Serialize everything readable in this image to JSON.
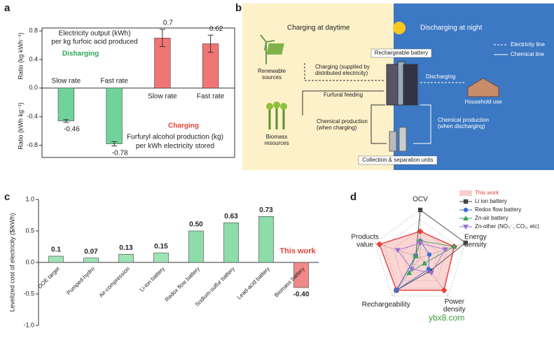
{
  "panel_labels": [
    "a",
    "b",
    "c",
    "d"
  ],
  "watermark": "ybx8.com",
  "chart_data": [
    {
      "type": "bar",
      "categories": [
        "Slow rate",
        "Fast rate",
        "Slow rate",
        "Fast rate"
      ],
      "values": [
        -0.46,
        -0.78,
        0.7,
        0.62
      ],
      "errors": [
        0.02,
        0.03,
        0.12,
        0.12
      ],
      "colors": [
        "#6fd39b",
        "#6fd39b",
        "#f07575",
        "#f07575"
      ],
      "ylim": [
        -0.97,
        0.84
      ],
      "yticks": [
        -0.8,
        -0.4,
        {
          "value": 0,
          "label": "0.0"
        },
        0.4,
        0.8
      ],
      "ylabel": [
        "Ratio (kg kWh⁻¹)",
        "Ratio (kWh kg⁻¹)"
      ],
      "annotations": [
        "Electricity output (kWh)",
        "per kg furfoic acid produced",
        "Disharging",
        "Charging",
        "Furfuryl alcohol production (kg)",
        "per kWh electricity stored"
      ]
    },
    {
      "type": "bar",
      "categories": [
        "DOE target",
        "Pumped-hydro",
        "Air-compression",
        "Li-ion battery",
        "Redox flow battery",
        "Sodium-sulfur battery",
        "Lead-acid battery",
        "Biomass battery"
      ],
      "values": [
        0.1,
        0.07,
        0.13,
        0.15,
        0.5,
        0.63,
        0.73,
        -0.4
      ],
      "value_labels": [
        "0.1",
        "0.07",
        "0.13",
        "0.15",
        "0.50",
        "0.63",
        "0.73",
        "-0.40"
      ],
      "colors": [
        "#9fe3b6",
        "#9fe3b6",
        "#9fe3b6",
        "#9fe3b6",
        "#8edcaa",
        "#8edcaa",
        "#8edcaa",
        "#f08a8a"
      ],
      "ylim": [
        -1,
        1
      ],
      "yticks": [
        {
          "value": -1,
          "label": "-1.0"
        },
        -0.5,
        {
          "value": 0,
          "label": "0.0"
        },
        0.5,
        {
          "value": 1,
          "label": "1.0"
        }
      ],
      "ylabel": "Levelized cost of electricity ($/kWh)",
      "annotations": [
        "This work"
      ]
    },
    {
      "type": "radar",
      "categories": [
        "OCV",
        "Energy density",
        "Power density",
        "Rechargeability",
        "Products value"
      ],
      "rlim": [
        0,
        1
      ],
      "rticks": [
        0.2,
        0.4,
        0.6,
        0.8,
        1
      ],
      "series": [
        {
          "name": "This work",
          "color": "#e8413c",
          "marker": "diamond",
          "fill": true,
          "values": [
            0.55,
            0.75,
            0.85,
            0.85,
            0.9
          ]
        },
        {
          "name": "Li ion battery",
          "color": "#444444",
          "marker": "square",
          "values": [
            1.0,
            1.0,
            0.35,
            0.85,
            0.1
          ]
        },
        {
          "name": "Redox flow battery",
          "color": "#3b6fd6",
          "marker": "circle",
          "values": [
            0.35,
            0.2,
            0.3,
            0.85,
            0.1
          ]
        },
        {
          "name": "Zn-air battery",
          "color": "#3aa35a",
          "marker": "triangle",
          "values": [
            0.35,
            0.75,
            0.15,
            0.4,
            0.1
          ]
        },
        {
          "name": "Zn-other (NO₃⁻, CO₂, etc)",
          "color": "#9a6fd6",
          "marker": "triangle-down",
          "values": [
            0.3,
            0.55,
            0.4,
            0.3,
            0.5
          ]
        }
      ]
    }
  ],
  "diagram": {
    "day": "Charging at daytime",
    "night": "Discharging at night",
    "electricity_line": "Electricity line",
    "chemical_line": "Chemical line",
    "renewable": [
      "Renewable",
      "sources"
    ],
    "battery": "Rechargeable battery",
    "charging": [
      "Charging (supplied by",
      "distributed electricity)"
    ],
    "discharging": "Discharging",
    "household": "Household use",
    "furfural": "Furfural feeding",
    "biomass": [
      "Biomass",
      "resources"
    ],
    "chem_charge": [
      "Chemical production",
      "(when charging)"
    ],
    "chem_discharge": [
      "Chemical production",
      "(when discharging)"
    ],
    "collection": "Collection & separation units"
  }
}
